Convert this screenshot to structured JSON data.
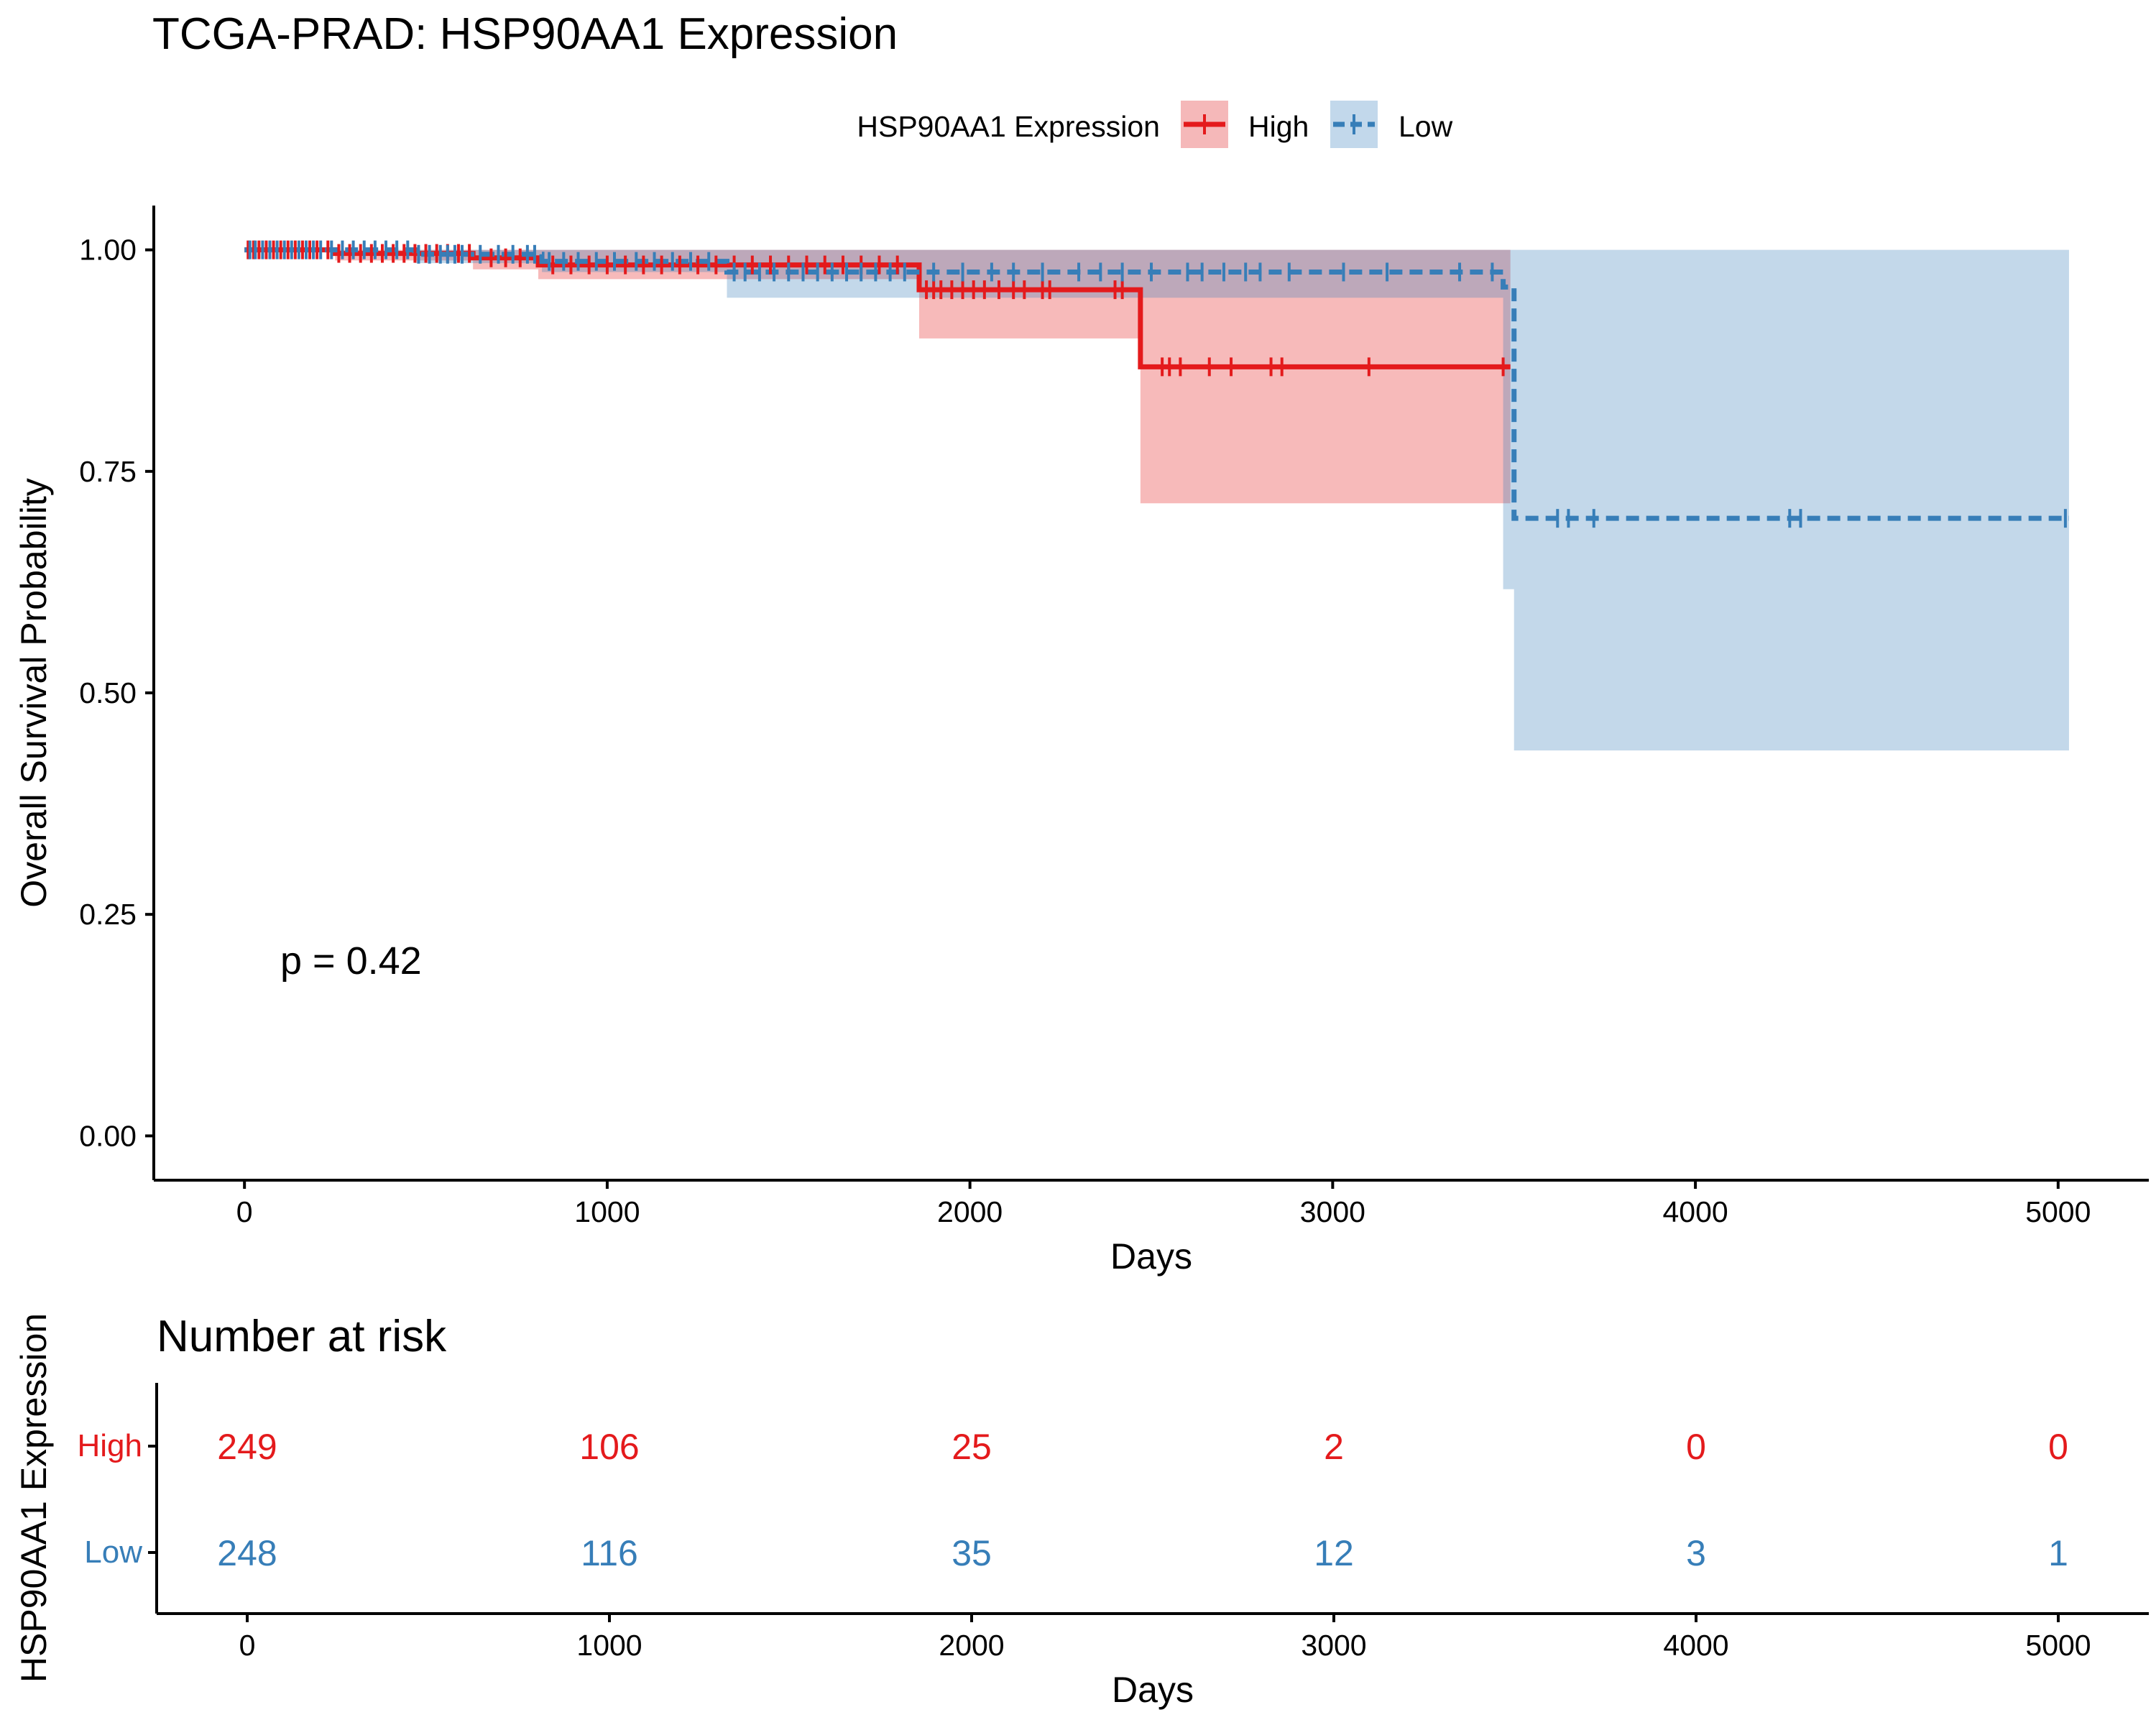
{
  "title": "TCGA-PRAD: HSP90AA1 Expression",
  "legend": {
    "title": "HSP90AA1 Expression",
    "position": "top",
    "items": [
      "High",
      "Low"
    ]
  },
  "colors": {
    "High": "#E41A1C",
    "Low": "#377EB8",
    "High_band": "#F5B8B9",
    "Low_band": "#C2D8EB",
    "axis": "#000000"
  },
  "chart_data": [
    {
      "type": "line",
      "subtype": "kaplan-meier",
      "title": "TCGA-PRAD: HSP90AA1 Expression",
      "xlabel": "Days",
      "ylabel": "Overall Survival Probability",
      "xlim": [
        -250,
        5250
      ],
      "ylim": [
        -0.05,
        1.05
      ],
      "xticks": [
        0,
        1000,
        2000,
        3000,
        4000,
        5000
      ],
      "yticks": [
        0,
        0.25,
        0.5,
        0.75,
        1
      ],
      "ytick_labels": [
        "0.00",
        "0.25",
        "0.50",
        "0.75",
        "1.00"
      ],
      "grid": false,
      "annotation": "p = 0.42",
      "series": [
        {
          "name": "High",
          "line_style": "solid",
          "steps": [
            [
              0,
              1.0
            ],
            [
              250,
              0.996
            ],
            [
              630,
              0.991
            ],
            [
              810,
              0.983
            ],
            [
              1860,
              0.955
            ],
            [
              2470,
              0.868
            ],
            [
              3490,
              0.868
            ]
          ],
          "ci": [
            [
              0,
              1.0,
              1.0
            ],
            [
              250,
              0.988,
              1.0
            ],
            [
              630,
              0.978,
              1.0
            ],
            [
              810,
              0.967,
              1.0
            ],
            [
              1860,
              0.9,
              1.0
            ],
            [
              2470,
              0.714,
              1.0
            ],
            [
              3490,
              0.714,
              1.0
            ]
          ],
          "censor": [
            10,
            25,
            40,
            60,
            80,
            100,
            120,
            140,
            160,
            180,
            200,
            230,
            260,
            290,
            320,
            350,
            380,
            410,
            440,
            470,
            500,
            530,
            560,
            590,
            620,
            680,
            720,
            760,
            850,
            900,
            950,
            1000,
            1050,
            1100,
            1150,
            1200,
            1250,
            1300,
            1350,
            1400,
            1450,
            1500,
            1550,
            1600,
            1650,
            1700,
            1750,
            1800,
            1880,
            1900,
            1920,
            1950,
            1980,
            2010,
            2040,
            2080,
            2120,
            2150,
            2200,
            2220,
            2400,
            2420,
            2530,
            2550,
            2580,
            2660,
            2720,
            2830,
            2860,
            3100,
            3470
          ]
        },
        {
          "name": "Low",
          "line_style": "dashed",
          "steps": [
            [
              0,
              1.0
            ],
            [
              470,
              0.995
            ],
            [
              820,
              0.987
            ],
            [
              1330,
              0.975
            ],
            [
              3470,
              0.958
            ],
            [
              3500,
              0.697
            ],
            [
              5030,
              0.697
            ]
          ],
          "ci": [
            [
              0,
              1.0,
              1.0
            ],
            [
              470,
              0.985,
              1.0
            ],
            [
              820,
              0.975,
              1.0
            ],
            [
              1330,
              0.946,
              1.0
            ],
            [
              3470,
              0.617,
              1.0
            ],
            [
              3500,
              0.435,
              1.0
            ],
            [
              5030,
              0.435,
              1.0
            ]
          ],
          "censor": [
            15,
            30,
            50,
            70,
            90,
            110,
            130,
            150,
            170,
            190,
            210,
            240,
            270,
            300,
            330,
            360,
            390,
            420,
            450,
            480,
            510,
            540,
            560,
            580,
            600,
            650,
            700,
            740,
            780,
            800,
            840,
            880,
            920,
            970,
            1020,
            1080,
            1130,
            1180,
            1230,
            1280,
            1350,
            1380,
            1420,
            1460,
            1500,
            1540,
            1580,
            1620,
            1660,
            1700,
            1740,
            1780,
            1820,
            1900,
            1980,
            2060,
            2120,
            2200,
            2300,
            2360,
            2420,
            2500,
            2600,
            2640,
            2700,
            2760,
            2800,
            2880,
            3030,
            3150,
            3350,
            3440,
            3620,
            3650,
            3720,
            4260,
            4290,
            5020
          ]
        }
      ]
    },
    {
      "type": "table",
      "title": "Number at risk",
      "xlabel": "Days",
      "ylabel": "HSP90AA1 Expression",
      "xticks": [
        0,
        1000,
        2000,
        3000,
        4000,
        5000
      ],
      "rows": [
        {
          "name": "High",
          "values": [
            249,
            106,
            25,
            2,
            0,
            0
          ]
        },
        {
          "name": "Low",
          "values": [
            248,
            116,
            35,
            12,
            3,
            1
          ]
        }
      ]
    }
  ]
}
